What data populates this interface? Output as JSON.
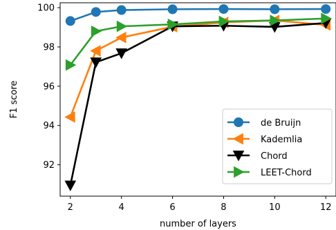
{
  "chart_data": {
    "type": "line",
    "title": "",
    "xlabel": "number of layers",
    "ylabel": "F1 score",
    "xlim": [
      1.6,
      12.4
    ],
    "ylim": [
      90.4,
      100.25
    ],
    "x_ticks": [
      2,
      4,
      6,
      8,
      10,
      12
    ],
    "y_ticks": [
      92,
      94,
      96,
      98,
      100
    ],
    "grid": false,
    "legend_position": "bottom-right",
    "x": [
      2,
      3,
      4,
      6,
      8,
      10,
      12
    ],
    "series": [
      {
        "name": "de Bruijn",
        "color": "#1f77b4",
        "marker": "circle",
        "values": [
          99.32,
          99.78,
          99.88,
          99.92,
          99.93,
          99.92,
          99.93
        ]
      },
      {
        "name": "Kademlia",
        "color": "#ff7f0e",
        "marker": "triangle-left",
        "values": [
          94.43,
          97.8,
          98.48,
          99.03,
          99.25,
          99.35,
          99.12
        ]
      },
      {
        "name": "Chord",
        "color": "#000000",
        "marker": "triangle-down",
        "values": [
          90.95,
          97.22,
          97.68,
          99.05,
          99.08,
          99.02,
          99.22
        ]
      },
      {
        "name": "LEET-Chord",
        "color": "#2ca02c",
        "marker": "triangle-right",
        "values": [
          97.08,
          98.8,
          99.05,
          99.15,
          99.3,
          99.35,
          99.45
        ]
      }
    ]
  }
}
